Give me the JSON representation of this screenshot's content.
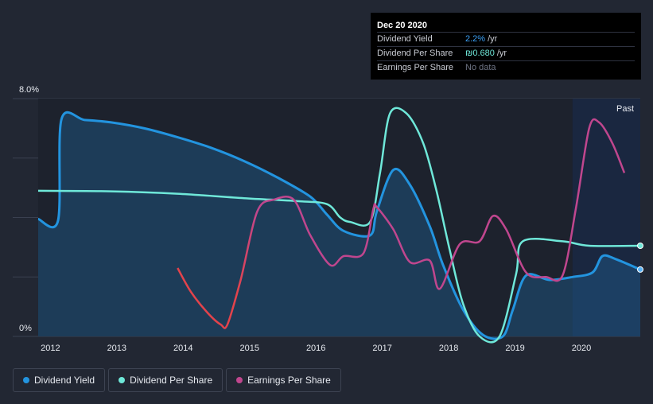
{
  "tooltip": {
    "date": "Dec 20 2020",
    "rows": [
      {
        "label": "Dividend Yield",
        "value": "2.2%",
        "unit": "/yr"
      },
      {
        "label": "Dividend Per Share",
        "value": "₪0.680",
        "unit": "/yr"
      },
      {
        "label": "Earnings Per Share",
        "value": "No data"
      }
    ]
  },
  "legend": [
    {
      "label": "Dividend Yield",
      "color": "#2394df"
    },
    {
      "label": "Dividend Per Share",
      "color": "#6fe8d9"
    },
    {
      "label": "Earnings Per Share",
      "color": "#c0468e"
    }
  ],
  "chart_data": {
    "type": "line",
    "ylim": [
      0,
      8.0
    ],
    "y_tick_labels": [
      "8.0%",
      "0%"
    ],
    "x_range": [
      2011.9,
      2020.97
    ],
    "x_ticks": [
      2012,
      2013,
      2014,
      2015,
      2016,
      2017,
      2018,
      2019,
      2020
    ],
    "past_label": "Past",
    "past_start": 2019.95,
    "colors": {
      "yield": "#2394df",
      "dps": "#6fe8d9",
      "eps_pos": "#c0468e",
      "eps_neg": "#e3434b"
    },
    "series": [
      {
        "name": "Dividend Yield",
        "key": "yield",
        "points": [
          [
            2011.9,
            3.95
          ],
          [
            2012.2,
            3.9
          ],
          [
            2012.25,
            7.3
          ],
          [
            2012.6,
            7.28
          ],
          [
            2013.0,
            7.2
          ],
          [
            2013.5,
            7.0
          ],
          [
            2014.0,
            6.7
          ],
          [
            2014.5,
            6.35
          ],
          [
            2015.0,
            5.9
          ],
          [
            2015.5,
            5.35
          ],
          [
            2016.0,
            4.7
          ],
          [
            2016.25,
            4.1
          ],
          [
            2016.5,
            3.55
          ],
          [
            2016.9,
            3.4
          ],
          [
            2017.0,
            4.2
          ],
          [
            2017.25,
            5.6
          ],
          [
            2017.5,
            5.1
          ],
          [
            2017.8,
            3.7
          ],
          [
            2018.0,
            2.4
          ],
          [
            2018.3,
            0.9
          ],
          [
            2018.6,
            0.05
          ],
          [
            2018.9,
            0.0
          ],
          [
            2019.05,
            0.9
          ],
          [
            2019.25,
            2.05
          ],
          [
            2019.6,
            1.9
          ],
          [
            2019.95,
            2.0
          ],
          [
            2020.25,
            2.15
          ],
          [
            2020.4,
            2.7
          ],
          [
            2020.6,
            2.6
          ],
          [
            2020.97,
            2.25
          ]
        ]
      },
      {
        "name": "Dividend Per Share",
        "key": "dps",
        "points": [
          [
            2011.9,
            4.9
          ],
          [
            2013.0,
            4.88
          ],
          [
            2014.0,
            4.8
          ],
          [
            2015.0,
            4.65
          ],
          [
            2015.8,
            4.55
          ],
          [
            2016.25,
            4.45
          ],
          [
            2016.45,
            4.0
          ],
          [
            2016.6,
            3.85
          ],
          [
            2016.9,
            3.85
          ],
          [
            2017.05,
            5.5
          ],
          [
            2017.2,
            7.5
          ],
          [
            2017.45,
            7.5
          ],
          [
            2017.7,
            6.5
          ],
          [
            2017.9,
            4.9
          ],
          [
            2018.1,
            2.9
          ],
          [
            2018.3,
            1.1
          ],
          [
            2018.55,
            0.0
          ],
          [
            2018.85,
            0.0
          ],
          [
            2019.1,
            2.1
          ],
          [
            2019.2,
            3.2
          ],
          [
            2019.8,
            3.2
          ],
          [
            2020.2,
            3.05
          ],
          [
            2020.97,
            3.05
          ]
        ]
      },
      {
        "name": "Earnings Per Share",
        "key": "eps",
        "points": [
          [
            2014.0,
            2.3
          ],
          [
            2014.2,
            1.5
          ],
          [
            2014.45,
            0.8
          ],
          [
            2014.65,
            0.4
          ],
          [
            2014.75,
            0.4
          ],
          [
            2014.95,
            1.9
          ],
          [
            2015.2,
            4.2
          ],
          [
            2015.45,
            4.6
          ],
          [
            2015.75,
            4.6
          ],
          [
            2016.0,
            3.4
          ],
          [
            2016.3,
            2.4
          ],
          [
            2016.5,
            2.7
          ],
          [
            2016.8,
            2.8
          ],
          [
            2016.95,
            4.3
          ],
          [
            2017.0,
            4.35
          ],
          [
            2017.25,
            3.6
          ],
          [
            2017.5,
            2.5
          ],
          [
            2017.8,
            2.55
          ],
          [
            2017.95,
            1.6
          ],
          [
            2018.25,
            3.1
          ],
          [
            2018.55,
            3.2
          ],
          [
            2018.75,
            4.05
          ],
          [
            2018.95,
            3.6
          ],
          [
            2019.25,
            2.15
          ],
          [
            2019.55,
            2.0
          ],
          [
            2019.8,
            2.05
          ],
          [
            2020.0,
            4.3
          ],
          [
            2020.2,
            7.0
          ],
          [
            2020.35,
            7.2
          ],
          [
            2020.55,
            6.5
          ],
          [
            2020.73,
            5.5
          ]
        ]
      }
    ]
  }
}
